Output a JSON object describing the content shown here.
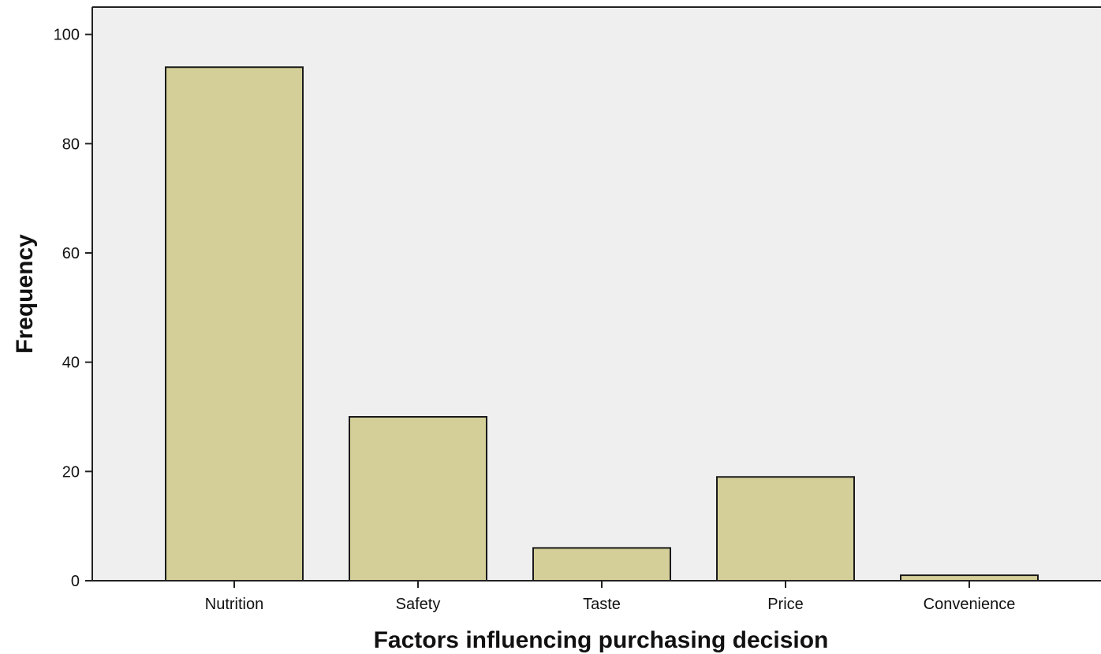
{
  "chart_data": {
    "type": "bar",
    "title": "",
    "xlabel": "Factors influencing purchasing decision",
    "ylabel": "Frequency",
    "categories": [
      "Nutrition",
      "Safety",
      "Taste",
      "Price",
      "Convenience"
    ],
    "values": [
      94,
      30,
      6,
      19,
      1
    ],
    "ylim": [
      0,
      105
    ],
    "yticks": [
      0,
      20,
      40,
      60,
      80,
      100
    ],
    "grid": false,
    "legend": "none"
  },
  "colors": {
    "bar_fill": "#d4cf98",
    "bar_stroke": "#1a1a1a",
    "plot_background": "#efefef",
    "axis": "#222222"
  }
}
